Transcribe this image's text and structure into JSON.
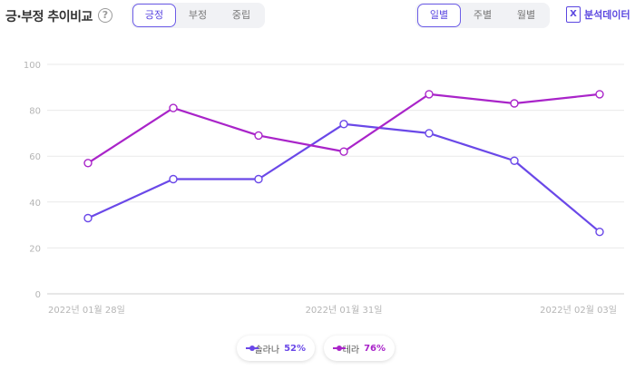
{
  "header": {
    "title": "긍·부정 추이비교",
    "help_icon": "?",
    "sentiment_tabs": [
      "긍정",
      "부정",
      "중립"
    ],
    "sentiment_active": 0,
    "period_tabs": [
      "일별",
      "주별",
      "월별"
    ],
    "period_active": 0,
    "excel_label": "분석데이터",
    "excel_icon": "X"
  },
  "colors": {
    "series_a": "#6a48e8",
    "series_b": "#a924c9",
    "accent": "#5b47e0"
  },
  "chart_data": {
    "type": "line",
    "x": [
      "2022년 01월 28일",
      "",
      "",
      "2022년 01월 31일",
      "",
      "",
      "2022년 02월 03일"
    ],
    "x_tick_labels": [
      "2022년 01월 28일",
      "2022년 01월 31일",
      "2022년 02월 03일"
    ],
    "ylim": [
      0,
      100
    ],
    "yticks": [
      0,
      20,
      40,
      60,
      80,
      100
    ],
    "grid": true,
    "series": [
      {
        "name": "솔라나",
        "percent": "52%",
        "color": "#6a48e8",
        "values": [
          33,
          50,
          50,
          74,
          70,
          58,
          27
        ]
      },
      {
        "name": "테라",
        "percent": "76%",
        "color": "#a924c9",
        "values": [
          57,
          81,
          69,
          62,
          87,
          83,
          87
        ]
      }
    ]
  },
  "legend": [
    {
      "name": "솔라나",
      "percent": "52%"
    },
    {
      "name": "테라",
      "percent": "76%"
    }
  ]
}
